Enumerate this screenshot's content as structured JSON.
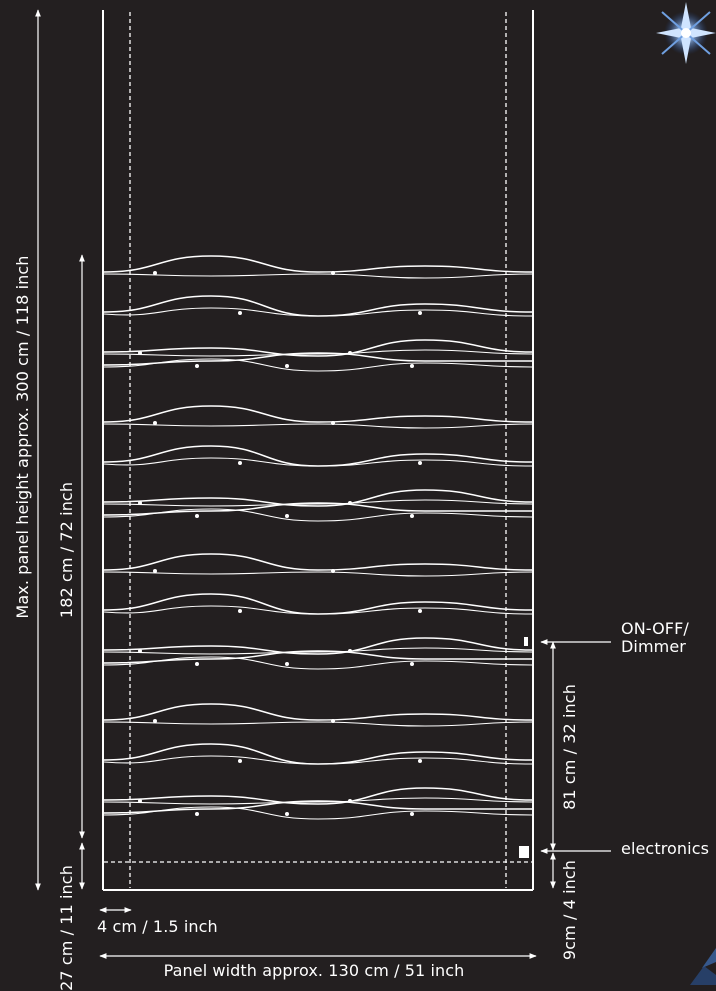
{
  "labels": {
    "max_height": "Max. panel  height approx. 300 cm / 118 inch",
    "height_182": "182 cm / 72 inch",
    "height_27": "27 cm / 11 inch",
    "margin_4": "4 cm / 1.5 inch",
    "panel_width": "Panel width approx. 130 cm / 51 inch",
    "switch": "ON-OFF/\nDimmer",
    "height_81": "81 cm / 32 inch",
    "electronics": "electronics",
    "height_9": "9cm / 4 inch"
  },
  "colors": {
    "background": "#231f20",
    "lines": "#ffffff"
  }
}
